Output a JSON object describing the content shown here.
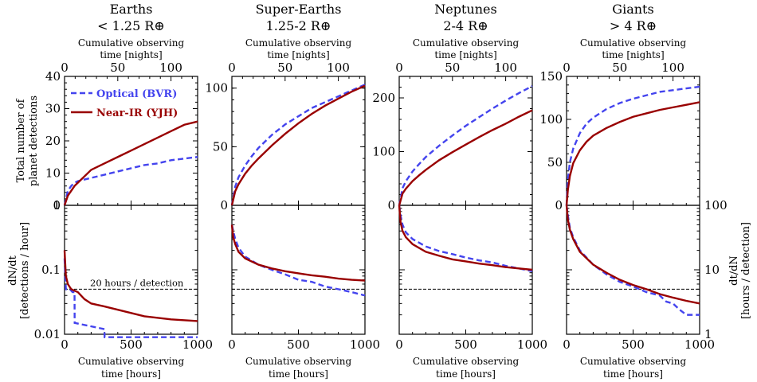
{
  "colors": {
    "optical": "#4444ee",
    "nearir": "#990000"
  },
  "legend": {
    "optical": "Optical (BVR)",
    "nearir": "Near-IR (YJH)"
  },
  "shared": {
    "x_bottom_label": [
      "Cumulative observing",
      "time [hours]"
    ],
    "x_top_label": [
      "Cumulative observing",
      "time [nights]"
    ],
    "x_bottom_ticks": [
      "0",
      "500",
      "1000"
    ],
    "x_top_ticks": [
      "0",
      "50",
      "100"
    ],
    "x_range_hours": [
      0,
      1000
    ],
    "y_label_top": [
      "Total number of",
      "planet detections"
    ],
    "y_label_bottom": [
      "dN/dt",
      "[detections / hour]"
    ],
    "y_label_right": [
      "dt/dN",
      "[hours / detection]"
    ],
    "rate_ticks": [
      "1",
      "0.1",
      "0.01"
    ],
    "inverse_ticks": [
      "1",
      "10",
      "100"
    ],
    "rate_range": [
      0.01,
      1
    ],
    "threshold_rate": 0.05,
    "threshold_label": "20 hours / detection"
  },
  "chart_data": [
    {
      "type": "line",
      "title": "Earths",
      "subtitle": "< 1.25 R⊕",
      "ylim": [
        0,
        40
      ],
      "yticks": [
        "0",
        "10",
        "20",
        "30",
        "40"
      ],
      "x": [
        0,
        25,
        50,
        75,
        100,
        150,
        200,
        300,
        400,
        500,
        600,
        700,
        800,
        900,
        1000
      ],
      "series": [
        {
          "name": "Optical (BVR)",
          "values": [
            0,
            4.5,
            6,
            7,
            7.5,
            8,
            8.5,
            9.5,
            10.5,
            11.5,
            12.5,
            13,
            14,
            14.5,
            15
          ]
        },
        {
          "name": "Near-IR (YJH)",
          "values": [
            0,
            3,
            4.5,
            6,
            7,
            9,
            11,
            13,
            15,
            17,
            19,
            21,
            23,
            25,
            26
          ]
        }
      ],
      "rate": [
        {
          "name": "Optical (BVR)",
          "x": [
            0,
            10,
            40,
            60,
            75,
            76,
            300,
            301,
            1000
          ],
          "values": [
            0.15,
            0.05,
            0.05,
            0.045,
            0.045,
            0.015,
            0.012,
            0.009,
            0.009
          ]
        },
        {
          "name": "Near-IR (YJH)",
          "x": [
            0,
            10,
            25,
            50,
            100,
            150,
            200,
            300,
            400,
            600,
            800,
            1000
          ],
          "values": [
            0.2,
            0.08,
            0.06,
            0.05,
            0.045,
            0.035,
            0.03,
            0.027,
            0.024,
            0.019,
            0.017,
            0.016
          ]
        }
      ]
    },
    {
      "type": "line",
      "title": "Super-Earths",
      "subtitle": "1.25-2 R⊕",
      "ylim": [
        0,
        110
      ],
      "yticks": [
        "0",
        "50",
        "100"
      ],
      "x": [
        0,
        25,
        50,
        100,
        150,
        200,
        300,
        400,
        500,
        600,
        700,
        800,
        900,
        1000
      ],
      "series": [
        {
          "name": "Optical (BVR)",
          "values": [
            0,
            16,
            24,
            34,
            42,
            49,
            60,
            69,
            76,
            83,
            88,
            93,
            98,
            103
          ]
        },
        {
          "name": "Near-IR (YJH)",
          "values": [
            0,
            12,
            18,
            27,
            34,
            40,
            51,
            61,
            70,
            78,
            85,
            91,
            97,
            102
          ]
        }
      ],
      "rate": [
        {
          "name": "Optical (BVR)",
          "x": [
            0,
            10,
            25,
            50,
            100,
            200,
            300,
            400,
            500,
            600,
            700,
            800,
            900,
            1000
          ],
          "values": [
            0.5,
            0.4,
            0.3,
            0.22,
            0.16,
            0.12,
            0.1,
            0.085,
            0.07,
            0.065,
            0.055,
            0.05,
            0.045,
            0.04
          ]
        },
        {
          "name": "Near-IR (YJH)",
          "x": [
            0,
            10,
            25,
            50,
            100,
            200,
            300,
            400,
            500,
            600,
            700,
            800,
            900,
            1000
          ],
          "values": [
            0.5,
            0.32,
            0.25,
            0.19,
            0.15,
            0.12,
            0.105,
            0.095,
            0.088,
            0.082,
            0.078,
            0.073,
            0.07,
            0.068
          ]
        }
      ]
    },
    {
      "type": "line",
      "title": "Neptunes",
      "subtitle": "2-4 R⊕",
      "ylim": [
        0,
        240
      ],
      "yticks": [
        "0",
        "100",
        "200"
      ],
      "x": [
        0,
        25,
        50,
        100,
        150,
        200,
        300,
        400,
        500,
        600,
        700,
        800,
        900,
        1000
      ],
      "series": [
        {
          "name": "Optical (BVR)",
          "values": [
            0,
            32,
            45,
            63,
            77,
            90,
            111,
            130,
            148,
            164,
            180,
            195,
            209,
            222
          ]
        },
        {
          "name": "Near-IR (YJH)",
          "values": [
            0,
            22,
            31,
            45,
            56,
            66,
            84,
            99,
            113,
            127,
            140,
            152,
            165,
            177
          ]
        }
      ],
      "rate": [
        {
          "name": "Optical (BVR)",
          "x": [
            0,
            10,
            25,
            50,
            100,
            200,
            300,
            400,
            500,
            600,
            700,
            800,
            900,
            1000
          ],
          "values": [
            1.0,
            0.7,
            0.5,
            0.38,
            0.3,
            0.23,
            0.195,
            0.175,
            0.155,
            0.14,
            0.13,
            0.115,
            0.105,
            0.095
          ]
        },
        {
          "name": "Near-IR (YJH)",
          "x": [
            0,
            10,
            25,
            50,
            100,
            200,
            300,
            400,
            500,
            600,
            700,
            800,
            900,
            1000
          ],
          "values": [
            1.0,
            0.55,
            0.4,
            0.32,
            0.25,
            0.19,
            0.165,
            0.145,
            0.135,
            0.125,
            0.118,
            0.11,
            0.105,
            0.1
          ]
        }
      ]
    },
    {
      "type": "line",
      "title": "Giants",
      "subtitle": "> 4 R⊕",
      "ylim": [
        0,
        150
      ],
      "yticks": [
        "0",
        "50",
        "100",
        "150"
      ],
      "x": [
        0,
        10,
        25,
        50,
        100,
        150,
        200,
        300,
        400,
        500,
        600,
        700,
        800,
        900,
        1000
      ],
      "series": [
        {
          "name": "Optical (BVR)",
          "values": [
            0,
            30,
            50,
            66,
            84,
            95,
            102,
            112,
            119,
            124,
            128,
            132,
            134,
            136,
            138
          ]
        },
        {
          "name": "Near-IR (YJH)",
          "values": [
            0,
            18,
            34,
            49,
            64,
            74,
            81,
            90,
            97,
            103,
            107,
            111,
            114,
            117,
            120
          ]
        }
      ],
      "rate": [
        {
          "name": "Optical (BVR)",
          "x": [
            0,
            10,
            25,
            50,
            100,
            200,
            300,
            400,
            500,
            600,
            700,
            750,
            800,
            850,
            900,
            1000
          ],
          "values": [
            1.0,
            0.7,
            0.45,
            0.32,
            0.2,
            0.12,
            0.085,
            0.065,
            0.055,
            0.045,
            0.04,
            0.032,
            0.03,
            0.024,
            0.02,
            0.02
          ]
        },
        {
          "name": "Near-IR (YJH)",
          "x": [
            0,
            10,
            25,
            50,
            100,
            200,
            300,
            400,
            500,
            600,
            700,
            800,
            900,
            1000
          ],
          "values": [
            1.0,
            0.6,
            0.42,
            0.3,
            0.19,
            0.12,
            0.09,
            0.07,
            0.058,
            0.05,
            0.042,
            0.037,
            0.033,
            0.03
          ]
        }
      ]
    }
  ]
}
